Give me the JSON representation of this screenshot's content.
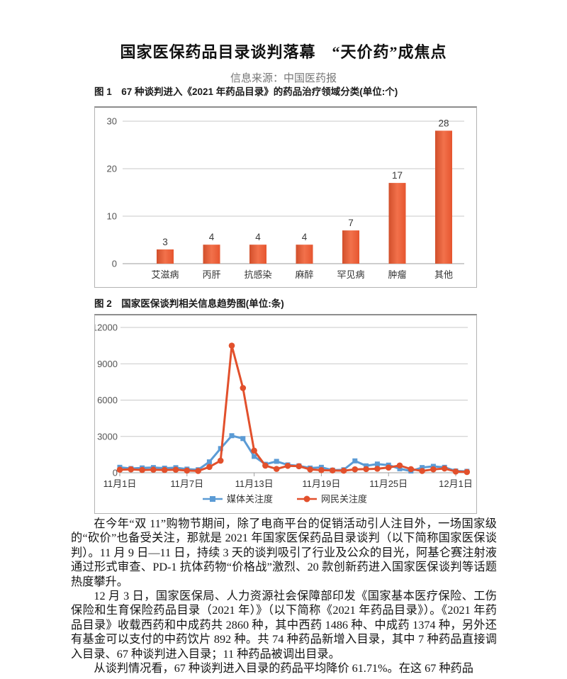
{
  "header": {
    "title": "国家医保药品目录谈判落幕　“天价药”成焦点",
    "source": "信息来源：中国医药报"
  },
  "figures": [
    {
      "caption": "图 1　67 种谈判进入《2021 年药品目录》的药品治疗领域分类(单位:个)"
    },
    {
      "caption": "图 2　国家医保谈判相关信息趋势图(单位:条)"
    }
  ],
  "colors": {
    "bar_main": "#e6552f",
    "bar_light": "#f2714b",
    "bar_dark": "#d14f2b",
    "line_media": "#5b9bd5",
    "line_netizen": "#e2502c",
    "gridline": "#c9c9c9",
    "axis": "#9e9e9e",
    "tick_label": "#555555",
    "category_label": "#333333"
  },
  "chart_data": [
    {
      "type": "bar",
      "title": "67种谈判进入《2021年药品目录》的药品治疗领域分类(单位:个)",
      "categories": [
        "艾滋病",
        "丙肝",
        "抗感染",
        "麻醉",
        "罕见病",
        "肿瘤",
        "其他"
      ],
      "values": [
        3,
        4,
        4,
        4,
        7,
        17,
        28
      ],
      "xlabel": "",
      "ylabel": "",
      "ylim": [
        0,
        30
      ],
      "yticks": [
        0,
        10,
        20,
        30
      ],
      "grid": true,
      "legend_position": "none"
    },
    {
      "type": "line",
      "title": "国家医保谈判相关信息趋势图(单位:条)",
      "x": [
        "11月1日",
        "11月2日",
        "11月3日",
        "11月4日",
        "11月5日",
        "11月6日",
        "11月7日",
        "11月8日",
        "11月9日",
        "11月10日",
        "11月11日",
        "11月12日",
        "11月13日",
        "11月14日",
        "11月15日",
        "11月16日",
        "11月17日",
        "11月18日",
        "11月19日",
        "11月20日",
        "11月21日",
        "11月22日",
        "11月23日",
        "11月24日",
        "11月25日",
        "11月26日",
        "11月27日",
        "11月28日",
        "11月29日",
        "11月30日",
        "12月1日",
        "12月2日"
      ],
      "x_tick_labels": [
        "11月1日",
        "11月7日",
        "11月13日",
        "11月19日",
        "11月25日",
        "12月1日"
      ],
      "x_tick_days": [
        1,
        7,
        13,
        19,
        25,
        31
      ],
      "series": [
        {
          "name": "媒体关注度",
          "marker": "square",
          "color": "#5b9bd5",
          "values": [
            450,
            350,
            400,
            430,
            380,
            420,
            300,
            250,
            900,
            2000,
            3060,
            2820,
            1350,
            700,
            940,
            650,
            570,
            390,
            450,
            215,
            250,
            980,
            570,
            720,
            630,
            330,
            140,
            430,
            530,
            450,
            150,
            120
          ]
        },
        {
          "name": "网民关注度",
          "marker": "circle",
          "color": "#e2502c",
          "values": [
            250,
            280,
            230,
            250,
            230,
            250,
            180,
            150,
            480,
            1000,
            10500,
            7000,
            1830,
            590,
            315,
            570,
            540,
            275,
            215,
            190,
            170,
            280,
            300,
            330,
            430,
            600,
            300,
            150,
            280,
            350,
            100,
            60
          ]
        }
      ],
      "ylim": [
        0,
        12000
      ],
      "yticks": [
        0,
        3000,
        6000,
        9000,
        12000
      ],
      "grid": true,
      "legend_position": "bottom"
    }
  ],
  "paragraphs": [
    "在今年“双 11”购物节期间，除了电商平台的促销活动引人注目外，一场国家级的“砍价”也备受关注，那就是 2021 年国家医保药品目录谈判（以下简称国家医保谈判）。11 月 9 日—11 日，持续 3 天的谈判吸引了行业及公众的目光，阿基仑赛注射液通过形式审查、PD-1 抗体药物“价格战”激烈、20 款创新药进入国家医保谈判等话题热度攀升。",
    "12 月 3 日，国家医保局、人力资源社会保障部印发《国家基本医疗保险、工伤保险和生育保险药品目录（2021 年）》（以下简称《2021 年药品目录》）。《2021 年药品目录》收载西药和中成药共 2860 种，其中西药 1486 种、中成药 1374 种，另外还有基金可以支付的中药饮片 892 种。共 74 种药品新增入目录，其中 7 种药品直接调入目录、67 种谈判进入目录；11 种药品被调出目录。",
    "从谈判情况看，67 种谈判进入目录的药品平均降价 61.71%。在这 67 种药品"
  ]
}
